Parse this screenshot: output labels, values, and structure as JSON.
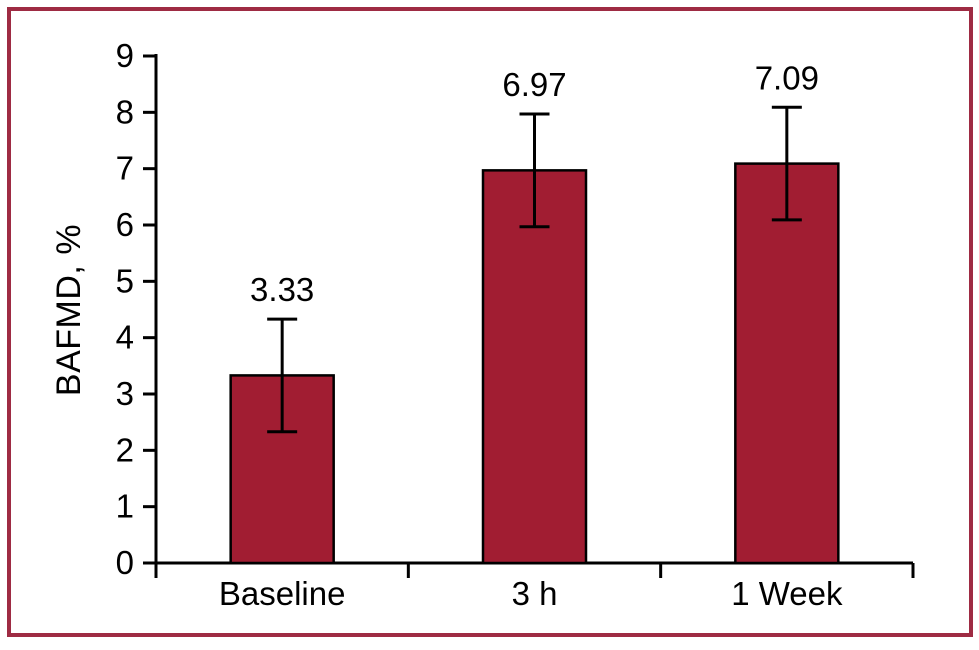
{
  "chart_data": {
    "type": "bar",
    "title": "",
    "xlabel": "",
    "ylabel": "BAFMD, %",
    "categories": [
      "Baseline",
      "3 h",
      "1 Week"
    ],
    "values": [
      3.33,
      6.97,
      7.09
    ],
    "value_labels": [
      "3.33",
      "6.97",
      "7.09"
    ],
    "errors": [
      1.0,
      1.0,
      1.0
    ],
    "ylim": [
      0,
      9
    ],
    "ytick_step": 1,
    "ytick_labels": [
      "0",
      "1",
      "2",
      "3",
      "4",
      "5",
      "6",
      "7",
      "8",
      "9"
    ],
    "grid": false,
    "legend": "none",
    "bar_color": "#a11d32",
    "bar_outline_color": "#000000",
    "error_bar_color": "#000000",
    "axis_color": "#000000",
    "text_color": "#000000",
    "frame_color": "#9e2b43",
    "background_color": "#ffffff"
  }
}
